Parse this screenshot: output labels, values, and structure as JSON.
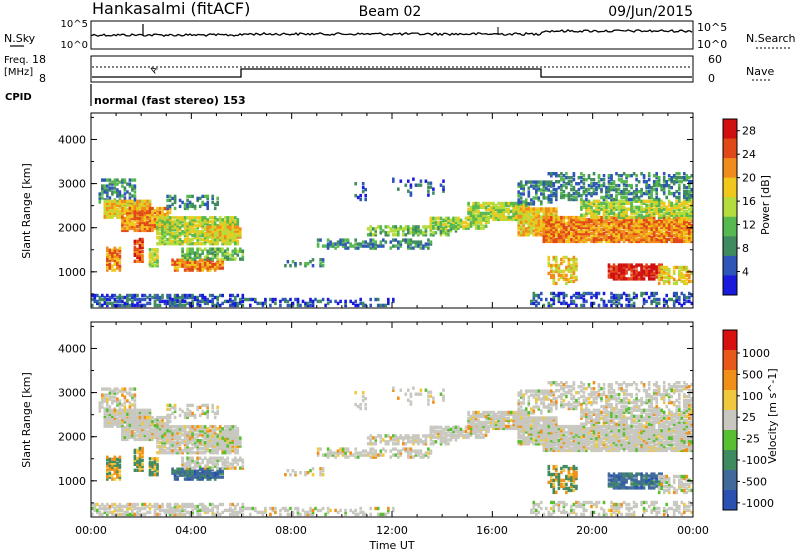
{
  "header": {
    "station": "Hankasalmi (fitACF)",
    "beam": "Beam 02",
    "date": "09/Jun/2015"
  },
  "status_panels": {
    "nsky_label": "N.Sky",
    "nsearch_label": "N.Search",
    "noise_ticks_left": [
      "10^5",
      "10^0"
    ],
    "noise_ticks_right": [
      "10^5",
      "10^0"
    ],
    "freq_label_1": "Freq.",
    "freq_label_2": "[MHz]",
    "freq_ticks": [
      "18",
      "8"
    ],
    "nave_label": "Nave",
    "nave_ticks": [
      "60",
      "0"
    ],
    "cpid_label": "CPID",
    "cpid_text": "normal (fast stereo) 153",
    "freq_marker": "A"
  },
  "time_axis": {
    "label": "Time UT",
    "ticks": [
      "00:00",
      "04:00",
      "08:00",
      "12:00",
      "16:00",
      "20:00",
      "00:00"
    ],
    "range_hours": [
      0,
      24
    ]
  },
  "chart_data": [
    {
      "type": "heatmap",
      "ylabel": "Slant Range [km]",
      "y_ticks": [
        "1000",
        "2000",
        "3000",
        "4000"
      ],
      "ylim": [
        180,
        4600
      ],
      "colorbar_label": "Power [dB]",
      "colorbar_ticks": [
        "4",
        "8",
        "12",
        "16",
        "20",
        "24",
        "28"
      ],
      "colorbar_range": [
        0,
        30
      ],
      "colors": [
        "#1a1adc",
        "#2e56b8",
        "#3f8a5e",
        "#56b84e",
        "#b4dc3c",
        "#f0c81c",
        "#f08c1c",
        "#e04818",
        "#d01010"
      ],
      "grid": false
    },
    {
      "type": "heatmap",
      "ylabel": "Slant Range [km]",
      "y_ticks": [
        "1000",
        "2000",
        "3000",
        "4000"
      ],
      "ylim": [
        180,
        4600
      ],
      "colorbar_label": "Velocity [m s^-1]",
      "colorbar_ticks": [
        "1000",
        "500",
        "100",
        "25",
        "-25",
        "-100",
        "-500",
        "-1000"
      ],
      "colorbar_range": [
        -1200,
        1200
      ],
      "colors": [
        "#2a50b0",
        "#3f6a9a",
        "#3f8a5e",
        "#58c030",
        "#c8c8c0",
        "#f0c83c",
        "#f09018",
        "#e85818",
        "#d81010"
      ],
      "grid": false
    }
  ]
}
